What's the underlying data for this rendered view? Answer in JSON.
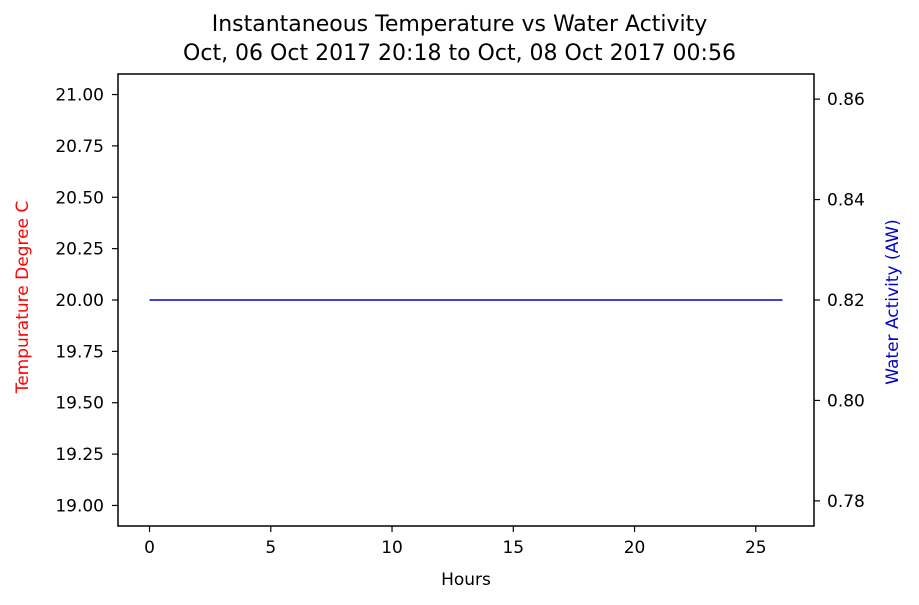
{
  "chart_data": {
    "type": "line",
    "title": "Instantaneous Temperature vs Water Activity",
    "subtitle": "Oct, 06 Oct 2017 20:18 to Oct, 08 Oct 2017 00:56",
    "xlabel": "Hours",
    "ylabel_left": "Tempurature Degree C",
    "ylabel_right": "Water Activity (AW)",
    "xlim": [
      -1.3,
      27.4
    ],
    "ylim_left": [
      18.9,
      21.1
    ],
    "ylim_right": [
      0.775,
      0.865
    ],
    "x_ticks": [
      "0",
      "5",
      "10",
      "15",
      "20",
      "25"
    ],
    "y_left_ticks": [
      "19.00",
      "19.25",
      "19.50",
      "19.75",
      "20.00",
      "20.25",
      "20.50",
      "20.75",
      "21.00"
    ],
    "y_right_ticks": [
      "0.78",
      "0.80",
      "0.82",
      "0.84",
      "0.86"
    ],
    "grid": false,
    "colors": {
      "left_label": "#ff0000",
      "right_label": "#0000cc",
      "series": "#0000cc"
    },
    "series": [
      {
        "axis": "right",
        "x": [
          0,
          26.1
        ],
        "values": [
          0.82,
          0.82
        ]
      }
    ]
  }
}
